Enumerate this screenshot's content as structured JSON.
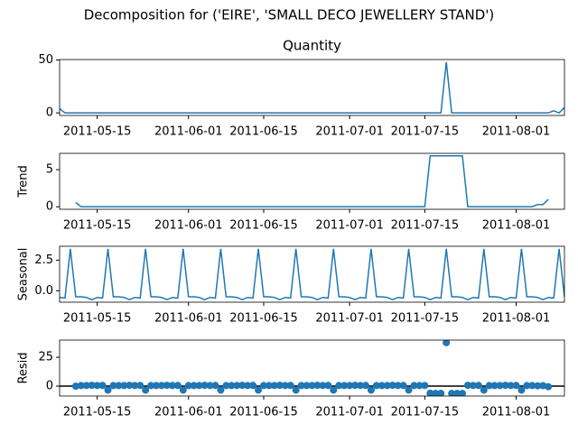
{
  "title": "Decomposition for ('EIRE', 'SMALL DECO JEWELLERY STAND')",
  "chart_data": [
    {
      "type": "line",
      "title": "Quantity",
      "color": "#1f77b4",
      "x": [
        "2011-05-08",
        "2011-05-09",
        "2011-05-10",
        "2011-05-11",
        "2011-05-12",
        "2011-05-13",
        "2011-05-14",
        "2011-05-15",
        "2011-05-16",
        "2011-05-17",
        "2011-05-18",
        "2011-05-19",
        "2011-05-20",
        "2011-05-21",
        "2011-05-22",
        "2011-05-23",
        "2011-05-24",
        "2011-05-25",
        "2011-05-26",
        "2011-05-27",
        "2011-05-28",
        "2011-05-29",
        "2011-05-30",
        "2011-05-31",
        "2011-06-01",
        "2011-06-02",
        "2011-06-03",
        "2011-06-04",
        "2011-06-05",
        "2011-06-06",
        "2011-06-07",
        "2011-06-08",
        "2011-06-09",
        "2011-06-10",
        "2011-06-11",
        "2011-06-12",
        "2011-06-13",
        "2011-06-14",
        "2011-06-15",
        "2011-06-16",
        "2011-06-17",
        "2011-06-18",
        "2011-06-19",
        "2011-06-20",
        "2011-06-21",
        "2011-06-22",
        "2011-06-23",
        "2011-06-24",
        "2011-06-25",
        "2011-06-26",
        "2011-06-27",
        "2011-06-28",
        "2011-06-29",
        "2011-06-30",
        "2011-07-01",
        "2011-07-02",
        "2011-07-03",
        "2011-07-04",
        "2011-07-05",
        "2011-07-06",
        "2011-07-07",
        "2011-07-08",
        "2011-07-09",
        "2011-07-10",
        "2011-07-11",
        "2011-07-12",
        "2011-07-13",
        "2011-07-14",
        "2011-07-15",
        "2011-07-16",
        "2011-07-17",
        "2011-07-18",
        "2011-07-19",
        "2011-07-20",
        "2011-07-21",
        "2011-07-22",
        "2011-07-23",
        "2011-07-24",
        "2011-07-25",
        "2011-07-26",
        "2011-07-27",
        "2011-07-28",
        "2011-07-29",
        "2011-07-30",
        "2011-07-31",
        "2011-08-01",
        "2011-08-02",
        "2011-08-03",
        "2011-08-04",
        "2011-08-05",
        "2011-08-06",
        "2011-08-07",
        "2011-08-08",
        "2011-08-09",
        "2011-08-10"
      ],
      "values": [
        4,
        0,
        0,
        0,
        0,
        0,
        0,
        0,
        0,
        0,
        0,
        0,
        0,
        0,
        0,
        0,
        0,
        0,
        0,
        0,
        0,
        0,
        0,
        0,
        0,
        0,
        0,
        0,
        0,
        0,
        0,
        0,
        0,
        0,
        0,
        0,
        0,
        0,
        0,
        0,
        0,
        0,
        0,
        0,
        0,
        0,
        0,
        0,
        0,
        0,
        0,
        0,
        0,
        0,
        0,
        0,
        0,
        0,
        0,
        0,
        0,
        0,
        0,
        0,
        0,
        0,
        0,
        0,
        0,
        0,
        0,
        0,
        48,
        0,
        0,
        0,
        0,
        0,
        0,
        0,
        0,
        0,
        0,
        0,
        0,
        0,
        0,
        0,
        0,
        0,
        0,
        0,
        2,
        0,
        5
      ],
      "xlim": [
        "2011-05-08",
        "2011-08-10"
      ],
      "xticks": [
        "2011-05-15",
        "2011-06-01",
        "2011-06-15",
        "2011-07-01",
        "2011-07-15",
        "2011-08-01"
      ],
      "ylim": [
        -2.4,
        50.4
      ],
      "yticks": [
        0,
        50
      ]
    },
    {
      "type": "line",
      "ylabel": "Trend",
      "color": "#1f77b4",
      "x": [
        "2011-05-08",
        "2011-05-09",
        "2011-05-10",
        "2011-05-11",
        "2011-05-12",
        "2011-05-13",
        "2011-05-14",
        "2011-05-15",
        "2011-05-16",
        "2011-05-17",
        "2011-05-18",
        "2011-05-19",
        "2011-05-20",
        "2011-05-21",
        "2011-05-22",
        "2011-05-23",
        "2011-05-24",
        "2011-05-25",
        "2011-05-26",
        "2011-05-27",
        "2011-05-28",
        "2011-05-29",
        "2011-05-30",
        "2011-05-31",
        "2011-06-01",
        "2011-06-02",
        "2011-06-03",
        "2011-06-04",
        "2011-06-05",
        "2011-06-06",
        "2011-06-07",
        "2011-06-08",
        "2011-06-09",
        "2011-06-10",
        "2011-06-11",
        "2011-06-12",
        "2011-06-13",
        "2011-06-14",
        "2011-06-15",
        "2011-06-16",
        "2011-06-17",
        "2011-06-18",
        "2011-06-19",
        "2011-06-20",
        "2011-06-21",
        "2011-06-22",
        "2011-06-23",
        "2011-06-24",
        "2011-06-25",
        "2011-06-26",
        "2011-06-27",
        "2011-06-28",
        "2011-06-29",
        "2011-06-30",
        "2011-07-01",
        "2011-07-02",
        "2011-07-03",
        "2011-07-04",
        "2011-07-05",
        "2011-07-06",
        "2011-07-07",
        "2011-07-08",
        "2011-07-09",
        "2011-07-10",
        "2011-07-11",
        "2011-07-12",
        "2011-07-13",
        "2011-07-14",
        "2011-07-15",
        "2011-07-16",
        "2011-07-17",
        "2011-07-18",
        "2011-07-19",
        "2011-07-20",
        "2011-07-21",
        "2011-07-22",
        "2011-07-23",
        "2011-07-24",
        "2011-07-25",
        "2011-07-26",
        "2011-07-27",
        "2011-07-28",
        "2011-07-29",
        "2011-07-30",
        "2011-07-31",
        "2011-08-01",
        "2011-08-02",
        "2011-08-03",
        "2011-08-04",
        "2011-08-05",
        "2011-08-06",
        "2011-08-07",
        "2011-08-08",
        "2011-08-09",
        "2011-08-10"
      ],
      "values": [
        null,
        null,
        null,
        0.57,
        0,
        0,
        0,
        0,
        0,
        0,
        0,
        0,
        0,
        0,
        0,
        0,
        0,
        0,
        0,
        0,
        0,
        0,
        0,
        0,
        0,
        0,
        0,
        0,
        0,
        0,
        0,
        0,
        0,
        0,
        0,
        0,
        0,
        0,
        0,
        0,
        0,
        0,
        0,
        0,
        0,
        0,
        0,
        0,
        0,
        0,
        0,
        0,
        0,
        0,
        0,
        0,
        0,
        0,
        0,
        0,
        0,
        0,
        0,
        0,
        0,
        0,
        0,
        0,
        0,
        6.86,
        6.86,
        6.86,
        6.86,
        6.86,
        6.86,
        6.86,
        0,
        0,
        0,
        0,
        0,
        0,
        0,
        0,
        0,
        0,
        0,
        0,
        0,
        0.29,
        0.29,
        1,
        null,
        null,
        null
      ],
      "xlim": [
        "2011-05-08",
        "2011-08-10"
      ],
      "xticks": [
        "2011-05-15",
        "2011-06-01",
        "2011-06-15",
        "2011-07-01",
        "2011-07-15",
        "2011-08-01"
      ],
      "ylim": [
        -0.343,
        7.2
      ],
      "yticks": [
        0,
        5
      ]
    },
    {
      "type": "line",
      "ylabel": "Seasonal",
      "color": "#1f77b4",
      "x": [
        "2011-05-08",
        "2011-05-09",
        "2011-05-10",
        "2011-05-11",
        "2011-05-12",
        "2011-05-13",
        "2011-05-14",
        "2011-05-15",
        "2011-05-16",
        "2011-05-17",
        "2011-05-18",
        "2011-05-19",
        "2011-05-20",
        "2011-05-21",
        "2011-05-22",
        "2011-05-23",
        "2011-05-24",
        "2011-05-25",
        "2011-05-26",
        "2011-05-27",
        "2011-05-28",
        "2011-05-29",
        "2011-05-30",
        "2011-05-31",
        "2011-06-01",
        "2011-06-02",
        "2011-06-03",
        "2011-06-04",
        "2011-06-05",
        "2011-06-06",
        "2011-06-07",
        "2011-06-08",
        "2011-06-09",
        "2011-06-10",
        "2011-06-11",
        "2011-06-12",
        "2011-06-13",
        "2011-06-14",
        "2011-06-15",
        "2011-06-16",
        "2011-06-17",
        "2011-06-18",
        "2011-06-19",
        "2011-06-20",
        "2011-06-21",
        "2011-06-22",
        "2011-06-23",
        "2011-06-24",
        "2011-06-25",
        "2011-06-26",
        "2011-06-27",
        "2011-06-28",
        "2011-06-29",
        "2011-06-30",
        "2011-07-01",
        "2011-07-02",
        "2011-07-03",
        "2011-07-04",
        "2011-07-05",
        "2011-07-06",
        "2011-07-07",
        "2011-07-08",
        "2011-07-09",
        "2011-07-10",
        "2011-07-11",
        "2011-07-12",
        "2011-07-13",
        "2011-07-14",
        "2011-07-15",
        "2011-07-16",
        "2011-07-17",
        "2011-07-18",
        "2011-07-19",
        "2011-07-20",
        "2011-07-21",
        "2011-07-22",
        "2011-07-23",
        "2011-07-24",
        "2011-07-25",
        "2011-07-26",
        "2011-07-27",
        "2011-07-28",
        "2011-07-29",
        "2011-07-30",
        "2011-07-31",
        "2011-08-01",
        "2011-08-02",
        "2011-08-03",
        "2011-08-04",
        "2011-08-05",
        "2011-08-06",
        "2011-08-07",
        "2011-08-08",
        "2011-08-09",
        "2011-08-10"
      ],
      "values": [
        -0.55,
        -0.6,
        3.43,
        -0.5,
        -0.5,
        -0.55,
        -0.73,
        -0.55,
        -0.6,
        3.43,
        -0.5,
        -0.5,
        -0.55,
        -0.73,
        -0.55,
        -0.6,
        3.43,
        -0.5,
        -0.5,
        -0.55,
        -0.73,
        -0.55,
        -0.6,
        3.43,
        -0.5,
        -0.5,
        -0.55,
        -0.73,
        -0.55,
        -0.6,
        3.43,
        -0.5,
        -0.5,
        -0.55,
        -0.73,
        -0.55,
        -0.6,
        3.43,
        -0.5,
        -0.5,
        -0.55,
        -0.73,
        -0.55,
        -0.6,
        3.43,
        -0.5,
        -0.5,
        -0.55,
        -0.73,
        -0.55,
        -0.6,
        3.43,
        -0.5,
        -0.5,
        -0.55,
        -0.73,
        -0.55,
        -0.6,
        3.43,
        -0.5,
        -0.5,
        -0.55,
        -0.73,
        -0.55,
        -0.6,
        3.43,
        -0.5,
        -0.5,
        -0.55,
        -0.73,
        -0.55,
        -0.6,
        3.43,
        -0.5,
        -0.5,
        -0.55,
        -0.73,
        -0.55,
        -0.6,
        3.43,
        -0.5,
        -0.5,
        -0.55,
        -0.73,
        -0.55,
        -0.6,
        3.43,
        -0.5,
        -0.5,
        -0.55,
        -0.73,
        -0.55,
        -0.6,
        3.43,
        -0.5
      ],
      "xlim": [
        "2011-05-08",
        "2011-08-10"
      ],
      "xticks": [
        "2011-05-15",
        "2011-06-01",
        "2011-06-15",
        "2011-07-01",
        "2011-07-15",
        "2011-08-01"
      ],
      "ylim": [
        -0.94,
        3.64
      ],
      "yticks": [
        {
          "value": 0,
          "label": "0.0"
        },
        {
          "value": 2.5,
          "label": "2.5"
        }
      ]
    },
    {
      "type": "scatter",
      "ylabel": "Resid",
      "color": "#1f77b4",
      "zero_line": true,
      "x": [
        "2011-05-08",
        "2011-05-09",
        "2011-05-10",
        "2011-05-11",
        "2011-05-12",
        "2011-05-13",
        "2011-05-14",
        "2011-05-15",
        "2011-05-16",
        "2011-05-17",
        "2011-05-18",
        "2011-05-19",
        "2011-05-20",
        "2011-05-21",
        "2011-05-22",
        "2011-05-23",
        "2011-05-24",
        "2011-05-25",
        "2011-05-26",
        "2011-05-27",
        "2011-05-28",
        "2011-05-29",
        "2011-05-30",
        "2011-05-31",
        "2011-06-01",
        "2011-06-02",
        "2011-06-03",
        "2011-06-04",
        "2011-06-05",
        "2011-06-06",
        "2011-06-07",
        "2011-06-08",
        "2011-06-09",
        "2011-06-10",
        "2011-06-11",
        "2011-06-12",
        "2011-06-13",
        "2011-06-14",
        "2011-06-15",
        "2011-06-16",
        "2011-06-17",
        "2011-06-18",
        "2011-06-19",
        "2011-06-20",
        "2011-06-21",
        "2011-06-22",
        "2011-06-23",
        "2011-06-24",
        "2011-06-25",
        "2011-06-26",
        "2011-06-27",
        "2011-06-28",
        "2011-06-29",
        "2011-06-30",
        "2011-07-01",
        "2011-07-02",
        "2011-07-03",
        "2011-07-04",
        "2011-07-05",
        "2011-07-06",
        "2011-07-07",
        "2011-07-08",
        "2011-07-09",
        "2011-07-10",
        "2011-07-11",
        "2011-07-12",
        "2011-07-13",
        "2011-07-14",
        "2011-07-15",
        "2011-07-16",
        "2011-07-17",
        "2011-07-18",
        "2011-07-19",
        "2011-07-20",
        "2011-07-21",
        "2011-07-22",
        "2011-07-23",
        "2011-07-24",
        "2011-07-25",
        "2011-07-26",
        "2011-07-27",
        "2011-07-28",
        "2011-07-29",
        "2011-07-30",
        "2011-07-31",
        "2011-08-01",
        "2011-08-02",
        "2011-08-03",
        "2011-08-04",
        "2011-08-05",
        "2011-08-06",
        "2011-08-07",
        "2011-08-08",
        "2011-08-09",
        "2011-08-10"
      ],
      "values": [
        null,
        null,
        null,
        -0.07,
        0.5,
        0.55,
        0.73,
        0.55,
        0.6,
        -3.43,
        0.5,
        0.5,
        0.55,
        0.73,
        0.55,
        0.6,
        -3.43,
        0.5,
        0.5,
        0.55,
        0.73,
        0.55,
        0.6,
        -3.43,
        0.5,
        0.5,
        0.55,
        0.73,
        0.55,
        0.6,
        -3.43,
        0.5,
        0.5,
        0.55,
        0.73,
        0.55,
        0.6,
        -3.43,
        0.5,
        0.5,
        0.55,
        0.73,
        0.55,
        0.6,
        -3.43,
        0.5,
        0.5,
        0.55,
        0.73,
        0.55,
        0.6,
        -3.43,
        0.5,
        0.5,
        0.55,
        0.73,
        0.55,
        0.6,
        -3.43,
        0.5,
        0.5,
        0.55,
        0.73,
        0.55,
        0.6,
        -3.43,
        0.5,
        0.5,
        0.55,
        -6.13,
        -6.31,
        -6.26,
        37.71,
        -6.36,
        -6.36,
        -6.31,
        0.73,
        0.55,
        0.6,
        -3.43,
        0.5,
        0.5,
        0.55,
        0.73,
        0.55,
        0.6,
        -3.43,
        0.5,
        0.5,
        0.26,
        0.44,
        -0.45,
        null,
        null,
        null
      ],
      "xlim": [
        "2011-05-08",
        "2011-08-10"
      ],
      "xticks": [
        "2011-05-15",
        "2011-06-01",
        "2011-06-15",
        "2011-07-01",
        "2011-07-15",
        "2011-08-01"
      ],
      "ylim": [
        -8.56,
        39.91
      ],
      "yticks": [
        0,
        25
      ]
    }
  ]
}
